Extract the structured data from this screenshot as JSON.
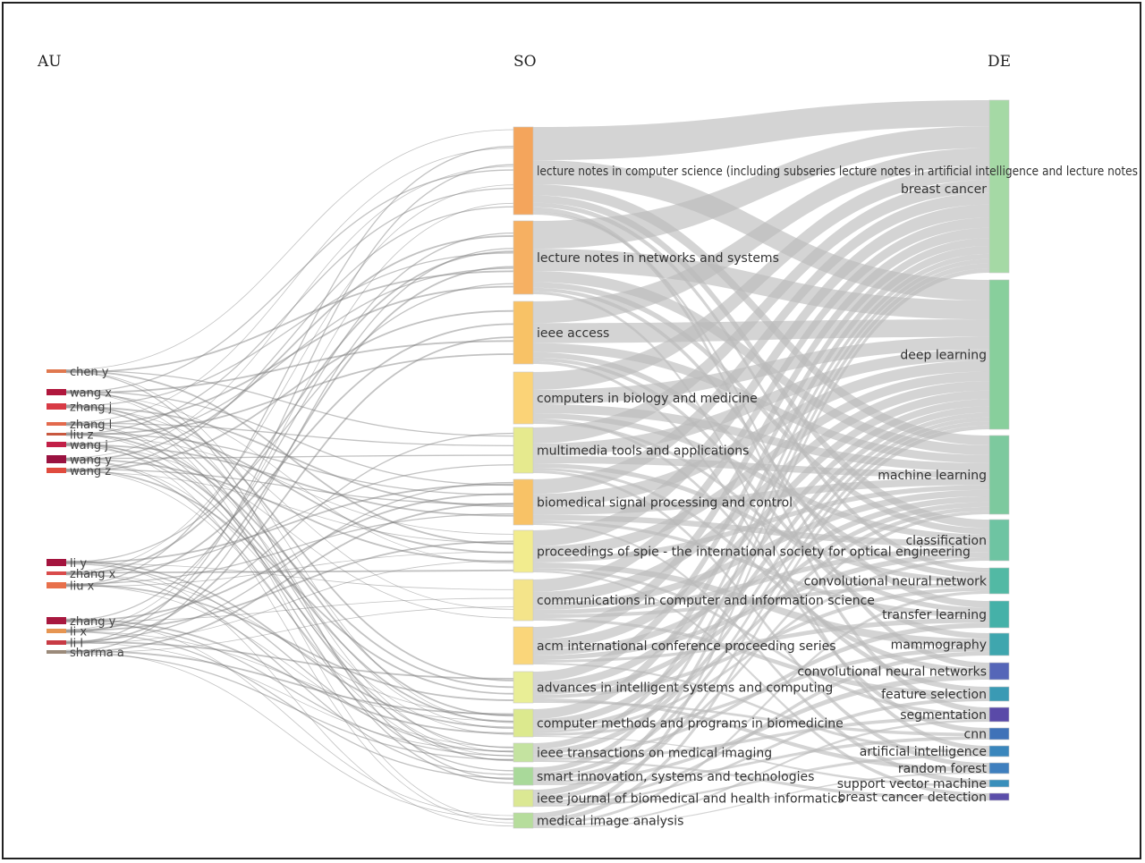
{
  "columns": {
    "au": "AU",
    "so": "SO",
    "de": "DE"
  },
  "au_nodes": [
    {
      "label": "chen y",
      "color": "#e0784f"
    },
    {
      "label": "wang x",
      "color": "#b0173c"
    },
    {
      "label": "zhang j",
      "color": "#d83a45"
    },
    {
      "label": "zhang l",
      "color": "#e36a4d"
    },
    {
      "label": "liu z",
      "color": "#c8583f"
    },
    {
      "label": "wang j",
      "color": "#c21f47"
    },
    {
      "label": "wang y",
      "color": "#9a1240"
    },
    {
      "label": "wang z",
      "color": "#e04b3e"
    },
    {
      "label": "li y",
      "color": "#a4143e"
    },
    {
      "label": "zhang x",
      "color": "#d94b4b"
    },
    {
      "label": "liu x",
      "color": "#e8704b"
    },
    {
      "label": "zhang y",
      "color": "#a8183f"
    },
    {
      "label": "li x",
      "color": "#e69552"
    },
    {
      "label": "li l",
      "color": "#c83b45"
    },
    {
      "label": "sharma a",
      "color": "#9b8a7a"
    }
  ],
  "so_nodes": [
    {
      "label": "lecture notes in computer science (including subseries lecture notes in artificial intelligence and lecture notes",
      "color": "#f4a55c"
    },
    {
      "label": "lecture notes in networks and systems",
      "color": "#f6b062"
    },
    {
      "label": "ieee access",
      "color": "#f8c266"
    },
    {
      "label": "computers in biology and medicine",
      "color": "#fbd377"
    },
    {
      "label": "multimedia tools and applications",
      "color": "#e6ea8e"
    },
    {
      "label": "biomedical signal processing and control",
      "color": "#f8c266"
    },
    {
      "label": "proceedings of spie - the international society for optical engineering",
      "color": "#f2ec8e"
    },
    {
      "label": "communications in computer and information science",
      "color": "#f4e48a"
    },
    {
      "label": "acm international conference proceeding series",
      "color": "#fad67a"
    },
    {
      "label": "advances in intelligent systems and computing",
      "color": "#e9ee96"
    },
    {
      "label": "computer methods and programs in biomedicine",
      "color": "#dce98e"
    },
    {
      "label": "ieee transactions on medical imaging",
      "color": "#c4e3a0"
    },
    {
      "label": "smart innovation, systems and technologies",
      "color": "#a9d99a"
    },
    {
      "label": "ieee journal of biomedical and health informatics",
      "color": "#dbe893"
    },
    {
      "label": "medical image analysis",
      "color": "#b6dd9c"
    }
  ],
  "de_nodes": [
    {
      "label": "breast cancer",
      "color": "#a5d9a5"
    },
    {
      "label": "deep learning",
      "color": "#88cf9c"
    },
    {
      "label": "machine learning",
      "color": "#7dc99e"
    },
    {
      "label": "classification",
      "color": "#6ec4a2"
    },
    {
      "label": "convolutional neural network",
      "color": "#52b9a4"
    },
    {
      "label": "transfer learning",
      "color": "#45b1a8"
    },
    {
      "label": "mammography",
      "color": "#3fa6ae"
    },
    {
      "label": "convolutional neural networks",
      "color": "#5566b8"
    },
    {
      "label": "feature selection",
      "color": "#3a9ab4"
    },
    {
      "label": "segmentation",
      "color": "#5a4aa8"
    },
    {
      "label": "cnn",
      "color": "#3f72b8"
    },
    {
      "label": "artificial intelligence",
      "color": "#3a86bc"
    },
    {
      "label": "random forest",
      "color": "#3f7fbe"
    },
    {
      "label": "support vector machine",
      "color": "#3a8fbb"
    },
    {
      "label": "breast cancer detection",
      "color": "#5b4ea9"
    }
  ]
}
